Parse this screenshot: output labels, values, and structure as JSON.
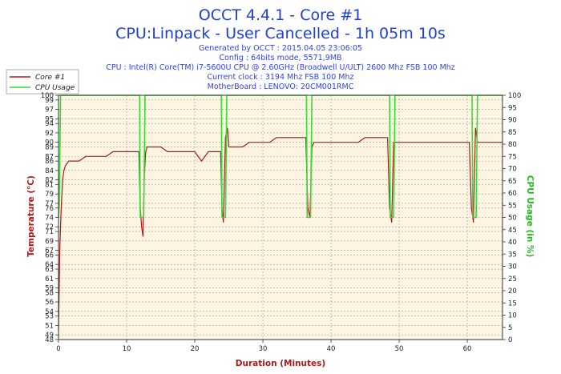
{
  "header": {
    "title": "OCCT 4.4.1 - Core #1",
    "subtitle": "CPU:Linpack - User Cancelled - 1h 05m 10s",
    "info_lines": [
      "Generated by OCCT : 2015.04.05 23:06:05",
      "Config : 64bits mode, 5571,9MB",
      "CPU : Intel(R) Core(TM) i7-5600U CPU @ 2.60GHz (Broadwell U/ULT) 2600 Mhz FSB 100 Mhz",
      "Current clock : 3194 Mhz FSB 100 Mhz",
      "MotherBoard : LENOVO: 20CM001RMC"
    ]
  },
  "colors": {
    "temperature": "#b01818",
    "cpu_usage": "#33dd33",
    "plot_background": "#fdf5e2",
    "grid": "#999999"
  },
  "chart_data": {
    "type": "line",
    "xlabel": "Duration (Minutes)",
    "ylabel": "Temperature (°C)",
    "y2label": "CPU Usage (in %)",
    "xlim": [
      0,
      65.17
    ],
    "ylim": [
      48,
      100
    ],
    "y2lim": [
      0,
      100
    ],
    "x_ticks": [
      0,
      10,
      20,
      30,
      40,
      50,
      60
    ],
    "y_ticks": [
      48,
      49,
      51,
      53,
      54,
      56,
      58,
      59,
      61,
      63,
      64,
      66,
      67,
      69,
      71,
      72,
      74,
      76,
      77,
      79,
      81,
      82,
      84,
      86,
      87,
      89,
      90,
      92,
      94,
      95,
      97,
      99,
      100
    ],
    "y2_ticks": [
      0,
      5,
      10,
      15,
      20,
      25,
      30,
      35,
      40,
      45,
      50,
      55,
      60,
      65,
      70,
      75,
      80,
      85,
      90,
      95,
      100
    ],
    "grid": true,
    "legend": "top-left",
    "series": [
      {
        "name": "Core #1",
        "axis": "left",
        "x": [
          0,
          0.2,
          0.4,
          0.6,
          0.8,
          1.0,
          1.5,
          2,
          3,
          4,
          5,
          6,
          7,
          8,
          9,
          10,
          11,
          11.8,
          12.0,
          12.2,
          12.4,
          12.6,
          12.8,
          13,
          14,
          15,
          16,
          17,
          18,
          19,
          20,
          21,
          22,
          23,
          23.8,
          24.0,
          24.2,
          24.5,
          24.8,
          25,
          26,
          27,
          28,
          29,
          30,
          31,
          32,
          33,
          34,
          35,
          36,
          36.3,
          36.6,
          36.9,
          37.2,
          37.5,
          38,
          39,
          40,
          41,
          42,
          43,
          44,
          45,
          46,
          47,
          48,
          48.3,
          48.6,
          48.9,
          49.2,
          49.5,
          50,
          51,
          52,
          53,
          54,
          55,
          56,
          57,
          58,
          59,
          60,
          60.3,
          60.6,
          60.9,
          61.2,
          61.5,
          62,
          63,
          64,
          65.17
        ],
        "y": [
          50,
          68,
          76,
          82,
          84,
          85,
          86,
          86,
          86,
          87,
          87,
          87,
          87,
          88,
          88,
          88,
          88,
          88,
          76,
          72,
          70,
          83,
          88,
          89,
          89,
          89,
          88,
          88,
          88,
          88,
          88,
          86,
          88,
          88,
          88,
          76,
          73,
          91,
          93,
          89,
          89,
          89,
          90,
          90,
          90,
          90,
          91,
          91,
          91,
          91,
          91,
          91,
          76,
          74,
          89,
          90,
          90,
          90,
          90,
          90,
          90,
          90,
          90,
          91,
          91,
          91,
          91,
          91,
          76,
          73,
          90,
          90,
          90,
          90,
          90,
          90,
          90,
          90,
          90,
          90,
          90,
          90,
          90,
          90,
          76,
          73,
          93,
          90,
          90,
          90,
          90,
          90
        ]
      },
      {
        "name": "CPU Usage",
        "axis": "right",
        "x": [
          0,
          0.1,
          0.3,
          0.5,
          11.9,
          12.0,
          12.5,
          12.7,
          23.9,
          24.0,
          24.5,
          24.7,
          36.4,
          36.5,
          37.0,
          37.2,
          48.6,
          48.7,
          49.2,
          49.4,
          60.7,
          60.8,
          61.3,
          61.5,
          65.17
        ],
        "y": [
          50,
          55,
          100,
          100,
          100,
          50,
          50,
          100,
          100,
          50,
          50,
          100,
          100,
          50,
          50,
          100,
          100,
          50,
          50,
          100,
          100,
          50,
          50,
          100,
          100
        ]
      }
    ]
  }
}
